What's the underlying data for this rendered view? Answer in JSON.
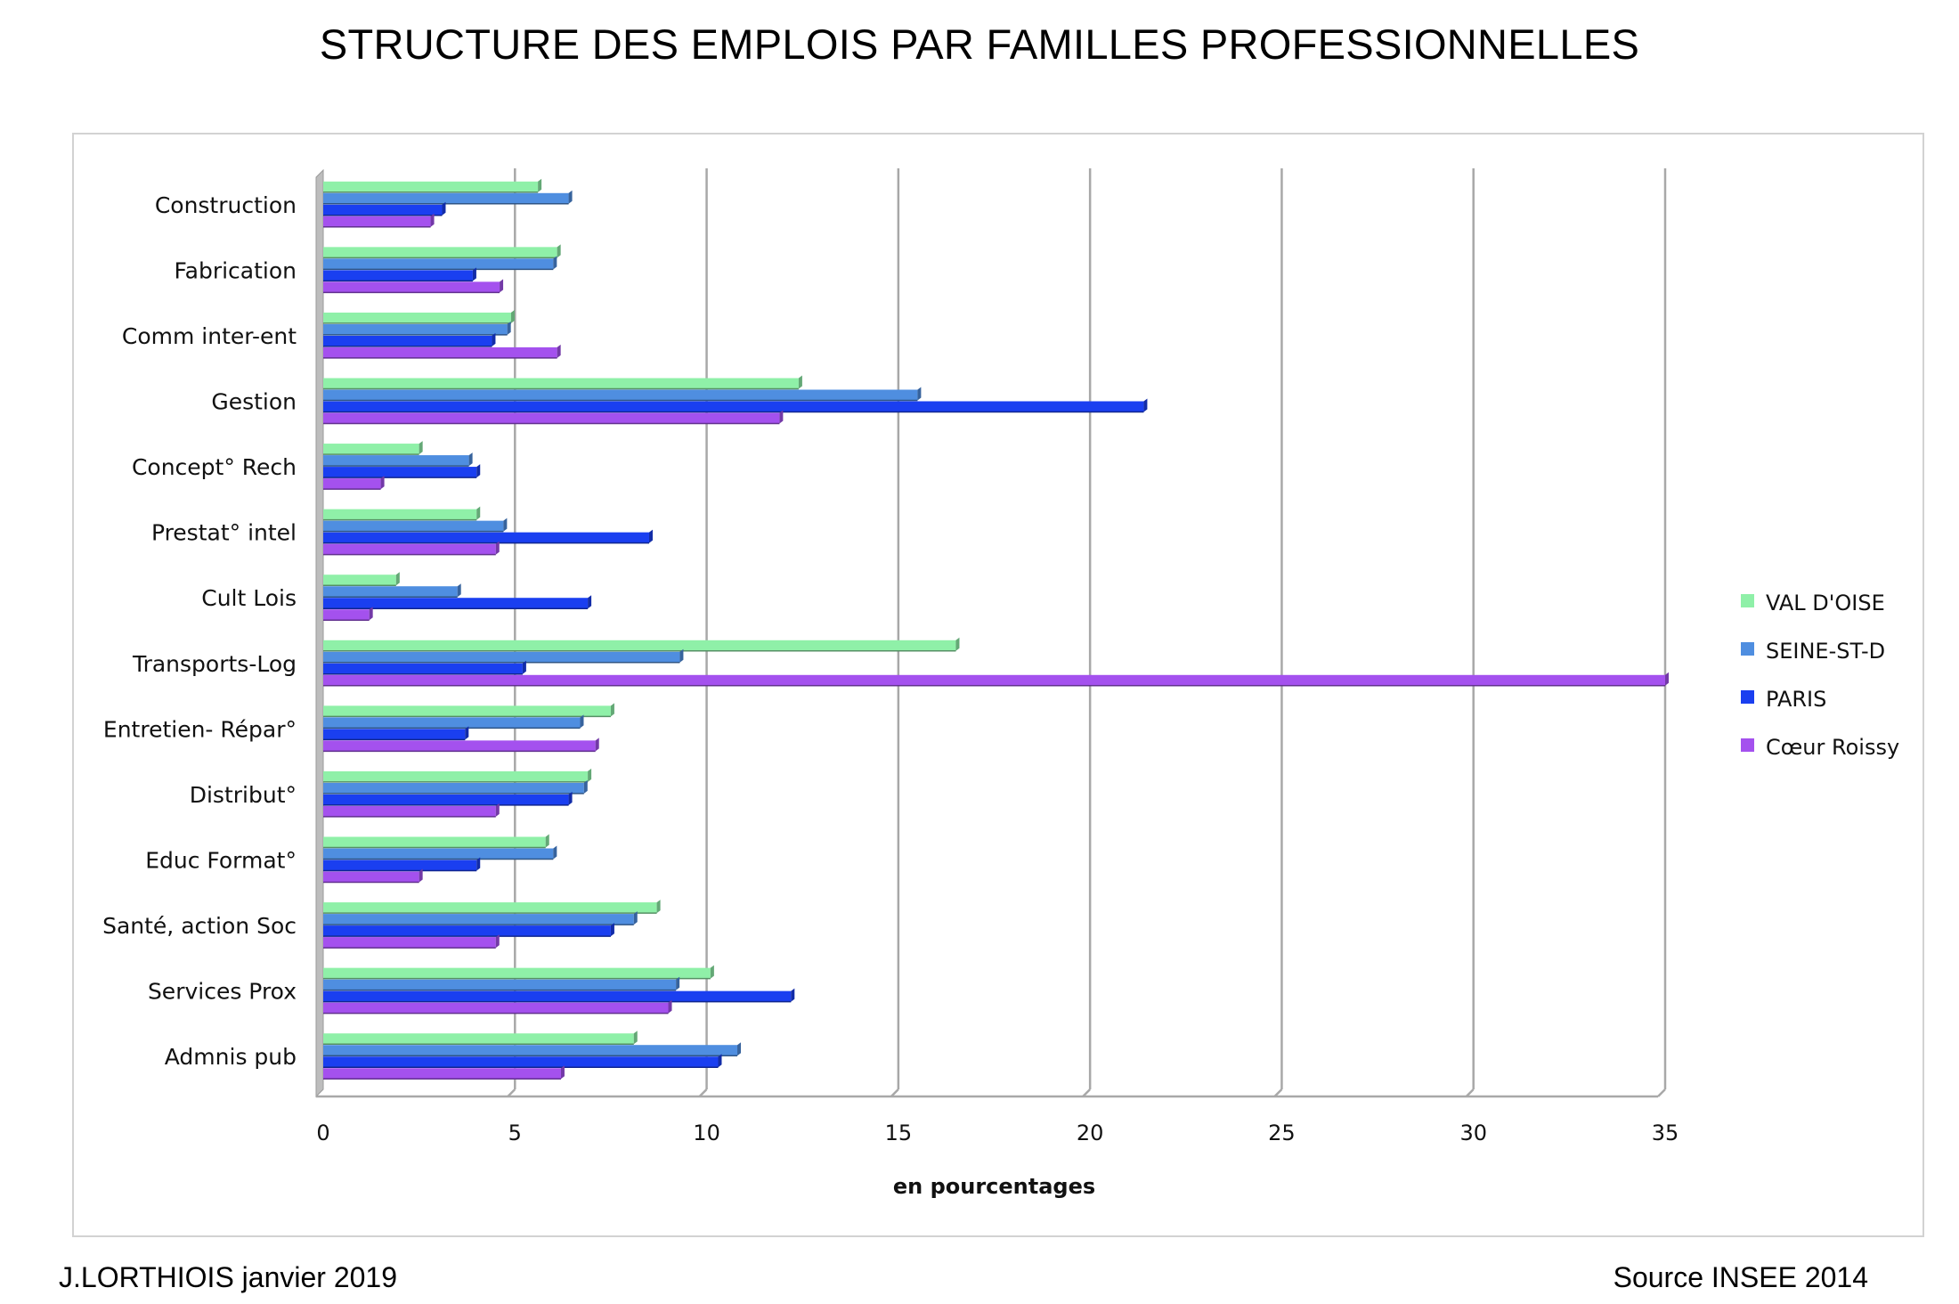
{
  "page": {
    "title": "STRUCTURE DES EMPLOIS PAR FAMILLES PROFESSIONNELLES",
    "footer_left": "J.LORTHIOIS janvier 2019",
    "footer_right": "Source INSEE 2014"
  },
  "chart_data": {
    "type": "bar",
    "orientation": "horizontal",
    "title": "STRUCTURE DES EMPLOIS PAR FAMILLES PROFESSIONNELLES",
    "xlabel": "en pourcentages",
    "ylabel": "",
    "xlim": [
      0,
      35
    ],
    "xticks": [
      0,
      5,
      10,
      15,
      20,
      25,
      30,
      35
    ],
    "grid": "vertical",
    "legend_position": "right",
    "categories": [
      "Construction",
      "Fabrication",
      "Comm inter-ent",
      "Gestion",
      "Concept° Rech",
      "Prestat° intel",
      "Cult Lois",
      "Transports-Log",
      "Entretien- Répar°",
      "Distribut°",
      "Educ Format°",
      "Santé, action Soc",
      "Services Prox",
      "Admnis pub"
    ],
    "series": [
      {
        "name": "VAL D'OISE",
        "color": "#8ff0a8",
        "values": [
          5.6,
          6.1,
          4.9,
          12.4,
          2.5,
          4.0,
          1.9,
          16.5,
          7.5,
          6.9,
          5.8,
          8.7,
          10.1,
          8.1
        ]
      },
      {
        "name": "SEINE-ST-D",
        "color": "#4f8ee0",
        "values": [
          6.4,
          6.0,
          4.8,
          15.5,
          3.8,
          4.7,
          3.5,
          9.3,
          6.7,
          6.8,
          6.0,
          8.1,
          9.2,
          10.8
        ]
      },
      {
        "name": "PARIS",
        "color": "#1a3ff0",
        "values": [
          3.1,
          3.9,
          4.4,
          21.4,
          4.0,
          8.5,
          6.9,
          5.2,
          3.7,
          6.4,
          4.0,
          7.5,
          12.2,
          10.3
        ]
      },
      {
        "name": "Cœur Roissy",
        "color": "#a451ee",
        "values": [
          2.8,
          4.6,
          6.1,
          11.9,
          1.5,
          4.5,
          1.2,
          35.0,
          7.1,
          4.5,
          2.5,
          4.5,
          9.0,
          6.2
        ]
      }
    ]
  }
}
